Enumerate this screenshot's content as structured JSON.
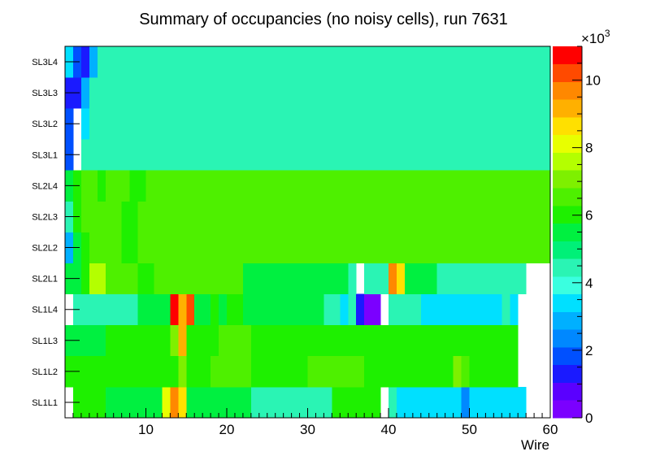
{
  "chart_data": {
    "type": "heatmap",
    "title": "Summary of occupancies (no noisy cells), run 7631",
    "xlabel": "Wire",
    "ylabel": "",
    "xlim": [
      0,
      60
    ],
    "x_ticks": [
      "10",
      "20",
      "30",
      "40",
      "50",
      "60"
    ],
    "y_categories": [
      "SL1L1",
      "SL1L2",
      "SL1L3",
      "SL1L4",
      "SL2L1",
      "SL2L2",
      "SL2L3",
      "SL2L4",
      "SL3L1",
      "SL3L2",
      "SL3L3",
      "SL3L4"
    ],
    "zlim": [
      0,
      11000
    ],
    "z_multiplier": "×10",
    "z_exponent": "3",
    "z_ticks": [
      "0",
      "2",
      "4",
      "6",
      "8",
      "10"
    ],
    "palette": [
      "#7b00ff",
      "#5a00ff",
      "#1a1aff",
      "#0050ff",
      "#0088ff",
      "#00b0ff",
      "#00e0ff",
      "#3affe0",
      "#2af4b4",
      "#00f078",
      "#00f040",
      "#1ef000",
      "#4ef000",
      "#7ef000",
      "#b4ff00",
      "#e8ff00",
      "#ffe000",
      "#ffb000",
      "#ff8800",
      "#ff4a00",
      "#ff0000"
    ],
    "rows": {
      "SL1L1": [
        0,
        6000,
        6000,
        6000,
        6000,
        5600,
        5600,
        5600,
        5600,
        5600,
        5600,
        5600,
        8200,
        9800,
        8800,
        5600,
        5600,
        5600,
        5600,
        5600,
        5600,
        5600,
        5600,
        4200,
        4200,
        4600,
        4200,
        4600,
        4200,
        4200,
        4200,
        4200,
        4200,
        6000,
        6000,
        6000,
        6000,
        6000,
        6000,
        0,
        4200,
        3600,
        3600,
        3600,
        3600,
        3600,
        3600,
        3600,
        3600,
        2600,
        3600,
        3600,
        3600,
        3600,
        3600,
        3600,
        3600,
        0,
        0,
        0
      ],
      "SL1L2": [
        6000,
        6000,
        6000,
        6000,
        6000,
        6000,
        6000,
        6000,
        6000,
        6000,
        6000,
        6000,
        6000,
        6000,
        7200,
        6000,
        6000,
        6000,
        6400,
        6400,
        6400,
        6400,
        6400,
        6000,
        6000,
        6000,
        6000,
        6000,
        6000,
        6000,
        6400,
        6400,
        6400,
        6400,
        6400,
        6400,
        6400,
        6000,
        6000,
        6000,
        6000,
        6000,
        6000,
        6000,
        6000,
        6000,
        6000,
        6000,
        7200,
        6800,
        6000,
        6000,
        6000,
        6000,
        6000,
        6000,
        0,
        0,
        0,
        0
      ],
      "SL1L3": [
        5600,
        5600,
        5600,
        5600,
        5600,
        6000,
        6000,
        6000,
        6000,
        6000,
        6000,
        6000,
        6000,
        7200,
        9000,
        6000,
        6000,
        6000,
        6000,
        6400,
        6400,
        6400,
        6400,
        6000,
        6000,
        6000,
        6000,
        6000,
        6000,
        6000,
        6000,
        6000,
        6000,
        6000,
        6000,
        6000,
        6000,
        6000,
        6000,
        6000,
        6000,
        6000,
        6000,
        6000,
        6000,
        6000,
        6000,
        6000,
        6000,
        6000,
        6000,
        6000,
        6000,
        6000,
        6000,
        6000,
        0,
        0,
        0,
        0
      ],
      "SL1L4": [
        0,
        4200,
        4200,
        4200,
        4200,
        4200,
        4200,
        4200,
        4200,
        5400,
        5400,
        5400,
        5400,
        10600,
        9200,
        10000,
        5400,
        5400,
        6000,
        5400,
        6000,
        6000,
        5400,
        5400,
        5400,
        5400,
        5400,
        5400,
        5400,
        5400,
        5400,
        5400,
        4200,
        4200,
        3400,
        4200,
        1200,
        400,
        400,
        0,
        4200,
        4200,
        4200,
        4200,
        3200,
        3200,
        3200,
        3200,
        3200,
        3200,
        3200,
        3200,
        3200,
        3200,
        4200,
        3200,
        0,
        0,
        0,
        0
      ],
      "SL2L1": [
        5600,
        5600,
        6000,
        7600,
        7600,
        6400,
        6400,
        6400,
        6400,
        6000,
        6000,
        6400,
        6400,
        6400,
        6400,
        6400,
        6400,
        6400,
        6400,
        6400,
        6400,
        6400,
        5600,
        5600,
        5600,
        5600,
        5600,
        5600,
        5600,
        5600,
        5600,
        5600,
        5600,
        5600,
        5600,
        4200,
        0,
        4200,
        4200,
        4200,
        9800,
        8600,
        5600,
        5600,
        5600,
        5600,
        4200,
        4200,
        4200,
        4200,
        4200,
        4200,
        4200,
        4200,
        4200,
        4200,
        4200,
        0,
        0,
        0
      ],
      "SL2L2": [
        3000,
        5600,
        6000,
        6400,
        6400,
        6400,
        6400,
        6000,
        6000,
        6400,
        6400,
        6400,
        6400,
        6400,
        6400,
        6400,
        6400,
        6400,
        6400,
        6400,
        6400,
        6400,
        6400,
        6400,
        6400,
        6400,
        6400,
        6400,
        6400,
        6400,
        6400,
        6400,
        6400,
        6400,
        6400,
        6400,
        6400,
        6400,
        6400,
        6400,
        6400,
        6400,
        6400,
        6400,
        6400,
        6400,
        6400,
        6400,
        6400,
        6400,
        6400,
        6400,
        6400,
        6400,
        6400,
        6400,
        6400,
        6400,
        6400,
        6400
      ],
      "SL2L3": [
        4200,
        6000,
        6400,
        6400,
        6400,
        6400,
        6400,
        6000,
        6000,
        6400,
        6400,
        6400,
        6400,
        6400,
        6400,
        6400,
        6400,
        6400,
        6400,
        6400,
        6400,
        6400,
        6400,
        6400,
        6400,
        6400,
        6400,
        6400,
        6400,
        6400,
        6400,
        6400,
        6400,
        6400,
        6400,
        6400,
        6400,
        6400,
        6400,
        6400,
        6400,
        6400,
        6400,
        6400,
        6400,
        6400,
        6400,
        6400,
        6400,
        6400,
        6400,
        6400,
        6400,
        6400,
        6400,
        6400,
        6400,
        6400,
        6400,
        6400
      ],
      "SL2L4": [
        5600,
        6000,
        6400,
        6400,
        6000,
        6400,
        6400,
        6400,
        6000,
        6000,
        6400,
        6400,
        6400,
        6400,
        6400,
        6400,
        6400,
        6400,
        6400,
        6400,
        6400,
        6400,
        6400,
        6400,
        6400,
        6400,
        6400,
        6400,
        6400,
        6400,
        6400,
        6400,
        6400,
        6400,
        6400,
        6400,
        6400,
        6400,
        6400,
        6400,
        6400,
        6400,
        6400,
        6400,
        6400,
        6400,
        6400,
        6400,
        6400,
        6400,
        6400,
        6400,
        6400,
        6400,
        6400,
        6400,
        6400,
        6400,
        6400,
        6400
      ],
      "SL3L1": [
        2000,
        0,
        4200,
        4600,
        4600,
        4600,
        4600,
        4600,
        4600,
        4600,
        4600,
        4600,
        4600,
        4600,
        4600,
        4600,
        4600,
        4600,
        4600,
        4600,
        4600,
        4600,
        4600,
        4600,
        4600,
        4600,
        4600,
        4600,
        4600,
        4600,
        4600,
        4600,
        4600,
        4600,
        4600,
        4600,
        4600,
        4600,
        4600,
        4600,
        4600,
        4600,
        4600,
        4600,
        4600,
        4600,
        4600,
        4600,
        4600,
        4600,
        4600,
        4600,
        4600,
        4600,
        4600,
        4600,
        4600,
        4600,
        4600,
        4600
      ],
      "SL3L2": [
        2000,
        0,
        3400,
        4200,
        4600,
        4600,
        4600,
        4600,
        4600,
        4600,
        4600,
        4600,
        4600,
        4600,
        4600,
        4600,
        4600,
        4600,
        4600,
        4600,
        4600,
        4600,
        4600,
        4600,
        4600,
        4600,
        4600,
        4600,
        4600,
        4600,
        4600,
        4600,
        4600,
        4600,
        4600,
        4600,
        4600,
        4600,
        4600,
        4600,
        4600,
        4600,
        4600,
        4600,
        4600,
        4600,
        4600,
        4600,
        4600,
        4600,
        4600,
        4600,
        4600,
        4600,
        4600,
        4600,
        4600,
        4600,
        4600,
        4600
      ],
      "SL3L3": [
        1400,
        1400,
        3000,
        4200,
        4200,
        4200,
        4200,
        4200,
        4200,
        4600,
        4600,
        4600,
        4600,
        4600,
        4600,
        4600,
        4600,
        4600,
        4600,
        4600,
        4600,
        4600,
        4600,
        4600,
        4600,
        4600,
        4600,
        4600,
        4600,
        4600,
        4600,
        4600,
        4600,
        4600,
        4600,
        4600,
        4600,
        4600,
        4600,
        4600,
        4600,
        4600,
        4600,
        4600,
        4600,
        4600,
        4600,
        4600,
        4600,
        4600,
        4600,
        4600,
        4600,
        4600,
        4600,
        4600,
        4600,
        4600,
        4600,
        4600
      ],
      "SL3L4": [
        3200,
        1800,
        1200,
        3000,
        4200,
        4200,
        4200,
        4200,
        4200,
        4200,
        4200,
        4200,
        4200,
        4200,
        4200,
        4200,
        4200,
        4200,
        4200,
        4200,
        4200,
        4200,
        4200,
        4200,
        4200,
        4200,
        4200,
        4200,
        4200,
        4200,
        4200,
        4200,
        4200,
        4200,
        4200,
        4200,
        4200,
        4200,
        4200,
        4200,
        4200,
        4200,
        4200,
        4200,
        4200,
        4200,
        4200,
        4200,
        4200,
        4200,
        4200,
        4200,
        4200,
        4200,
        4200,
        4200,
        4200,
        4200,
        4200,
        4200
      ]
    }
  }
}
